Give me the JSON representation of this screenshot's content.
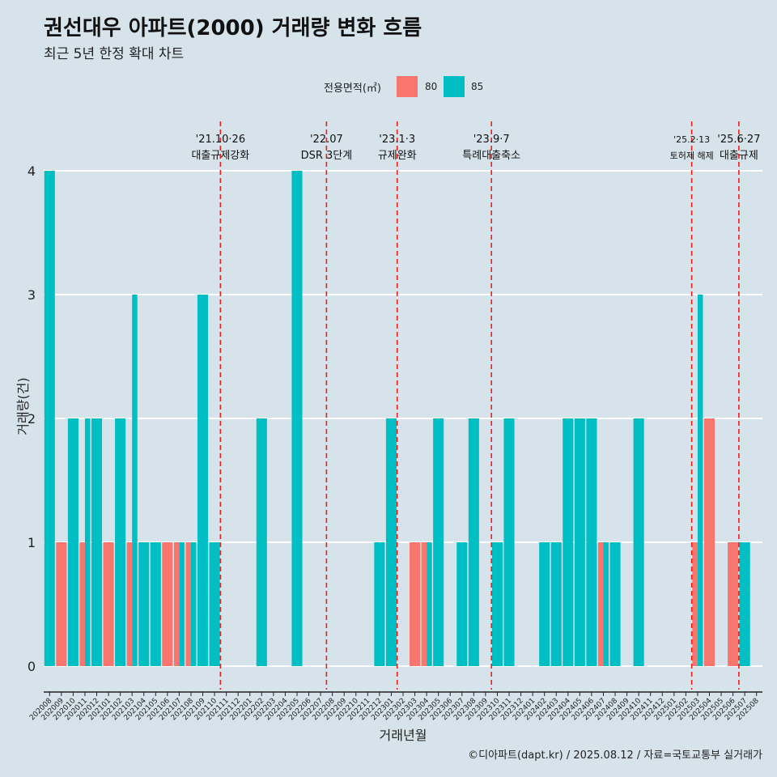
{
  "title": "권선대우 아파트(2000) 거래량 변화 흐름",
  "subtitle": "최근 5년 한정 확대 차트",
  "caption": "©디아파트(dapt.kr) / 2025.08.12 / 자료=국토교통부 실거래가",
  "legend": {
    "title": "전용면적(㎡)",
    "items": [
      {
        "label": "80",
        "color": "#f8766d"
      },
      {
        "label": "85",
        "color": "#00bfc4"
      }
    ]
  },
  "chart_data": {
    "type": "bar",
    "stacked": false,
    "position": "dodge",
    "xlabel": "거래년월",
    "ylabel": "거래량(건)",
    "ylim": [
      0,
      4
    ],
    "yticks": [
      0,
      1,
      2,
      3,
      4
    ],
    "categories": [
      "202008",
      "202009",
      "202010",
      "202011",
      "202012",
      "202101",
      "202102",
      "202103",
      "202104",
      "202105",
      "202106",
      "202107",
      "202108",
      "202109",
      "202110",
      "202111",
      "202112",
      "202201",
      "202202",
      "202203",
      "202204",
      "202205",
      "202206",
      "202207",
      "202208",
      "202209",
      "202210",
      "202211",
      "202212",
      "202301",
      "202302",
      "202303",
      "202304",
      "202305",
      "202306",
      "202307",
      "202308",
      "202309",
      "202310",
      "202311",
      "202312",
      "202401",
      "202402",
      "202403",
      "202404",
      "202405",
      "202406",
      "202407",
      "202408",
      "202409",
      "202410",
      "202411",
      "202412",
      "202501",
      "202502",
      "202503",
      "202504",
      "202505",
      "202506",
      "202507",
      "202508"
    ],
    "series": [
      {
        "name": "80",
        "color": "#f8766d",
        "values": [
          0,
          1,
          0,
          1,
          0,
          1,
          0,
          1,
          0,
          0,
          1,
          1,
          1,
          0,
          0,
          0,
          0,
          0,
          0,
          0,
          0,
          0,
          0,
          0,
          0,
          0,
          0,
          0,
          0,
          0,
          0,
          1,
          1,
          0,
          0,
          0,
          0,
          0,
          0,
          0,
          0,
          0,
          0,
          0,
          0,
          0,
          0,
          1,
          0,
          0,
          0,
          0,
          0,
          0,
          0,
          1,
          2,
          0,
          1,
          0,
          0
        ]
      },
      {
        "name": "85",
        "color": "#00bfc4",
        "values": [
          4,
          0,
          2,
          2,
          2,
          0,
          2,
          3,
          1,
          1,
          0,
          1,
          1,
          3,
          1,
          0,
          0,
          0,
          2,
          0,
          0,
          4,
          0,
          0,
          0,
          0,
          0,
          0,
          1,
          2,
          0,
          0,
          1,
          2,
          0,
          1,
          2,
          0,
          1,
          2,
          0,
          0,
          1,
          1,
          2,
          2,
          2,
          1,
          1,
          0,
          2,
          0,
          0,
          0,
          0,
          3,
          0,
          0,
          0,
          1,
          0
        ]
      }
    ],
    "events": [
      {
        "date_line1": "'21.10·26",
        "date_line2": "대출규제강화",
        "after": "202110"
      },
      {
        "date_line1": "'22.07",
        "date_line2": "DSR 3단계",
        "after": "202207"
      },
      {
        "date_line1": "'23.1·3",
        "date_line2": "규제완화",
        "after": "202301"
      },
      {
        "date_line1": "'23.9·7",
        "date_line2": "특례대출축소",
        "after": "202309"
      },
      {
        "date_line1": "'25.2·13",
        "date_line2": "토허제 해제",
        "after": "202502"
      },
      {
        "date_line1": "'25.6·27",
        "date_line2": "대출규제",
        "after": "202506"
      }
    ],
    "grid": true,
    "legend_position": "top"
  }
}
